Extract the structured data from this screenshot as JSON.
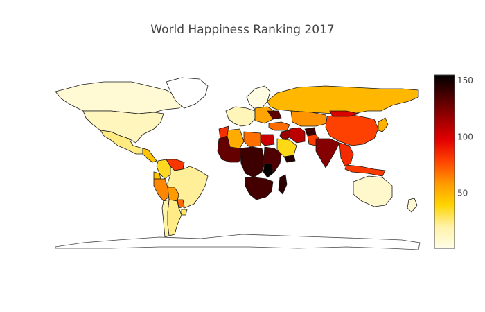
{
  "chart_data": {
    "type": "choropleth",
    "title": "World Happiness Ranking 2017",
    "colorbar": {
      "range": [
        1,
        155
      ],
      "tick_values": [
        50,
        100,
        150
      ],
      "tick_labels": [
        "50",
        "100",
        "150"
      ],
      "colorscale": [
        "#fffde8",
        "#fff2a8",
        "#ffd400",
        "#ff9900",
        "#ff4400",
        "#e30000",
        "#9b0000",
        "#4d0000",
        "#000000"
      ]
    },
    "regions": [
      {
        "name": "Canada",
        "rank": 7
      },
      {
        "name": "Greenland",
        "rank": null
      },
      {
        "name": "United States",
        "rank": 14
      },
      {
        "name": "Mexico",
        "rank": 25
      },
      {
        "name": "Central America",
        "rank": 45
      },
      {
        "name": "Colombia",
        "rank": 36
      },
      {
        "name": "Venezuela",
        "rank": 82
      },
      {
        "name": "Ecuador",
        "rank": 44
      },
      {
        "name": "Peru",
        "rank": 63
      },
      {
        "name": "Brazil",
        "rank": 22
      },
      {
        "name": "Bolivia",
        "rank": 58
      },
      {
        "name": "Paraguay",
        "rank": 70
      },
      {
        "name": "Argentina",
        "rank": 24
      },
      {
        "name": "Chile",
        "rank": 20
      },
      {
        "name": "Uruguay",
        "rank": 28
      },
      {
        "name": "Scandinavia",
        "rank": 3
      },
      {
        "name": "Western Europe",
        "rank": 15
      },
      {
        "name": "Eastern Europe",
        "rank": 55
      },
      {
        "name": "Russia",
        "rank": 49
      },
      {
        "name": "Ukraine",
        "rank": 132
      },
      {
        "name": "Turkey",
        "rank": 69
      },
      {
        "name": "Kazakhstan",
        "rank": 60
      },
      {
        "name": "China",
        "rank": 79
      },
      {
        "name": "Mongolia",
        "rank": 100
      },
      {
        "name": "Iran",
        "rank": 108
      },
      {
        "name": "Iraq",
        "rank": 117
      },
      {
        "name": "Afghanistan",
        "rank": 141
      },
      {
        "name": "Pakistan",
        "rank": 80
      },
      {
        "name": "India",
        "rank": 122
      },
      {
        "name": "Saudi Arabia",
        "rank": 37
      },
      {
        "name": "Yemen",
        "rank": 146
      },
      {
        "name": "Egypt",
        "rank": 104
      },
      {
        "name": "Libya",
        "rank": 68
      },
      {
        "name": "Algeria",
        "rank": 53
      },
      {
        "name": "Morocco",
        "rank": 84
      },
      {
        "name": "West Africa",
        "rank": 130
      },
      {
        "name": "Central Africa",
        "rank": 140
      },
      {
        "name": "East Africa",
        "rank": 135
      },
      {
        "name": "Burundi",
        "rank": 154
      },
      {
        "name": "Southern Africa",
        "rank": 138
      },
      {
        "name": "Madagascar",
        "rank": 144
      },
      {
        "name": "Southeast Asia",
        "rank": 85
      },
      {
        "name": "Indonesia",
        "rank": 81
      },
      {
        "name": "Japan",
        "rank": 51
      },
      {
        "name": "Australia",
        "rank": 9
      },
      {
        "name": "New Zealand",
        "rank": 8
      }
    ]
  }
}
